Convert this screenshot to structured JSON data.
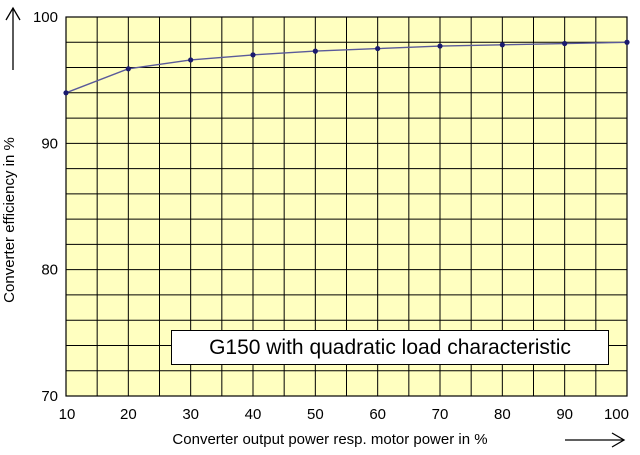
{
  "chart_data": {
    "type": "line",
    "title": "",
    "xlabel": "Converter output power resp. motor power in %",
    "ylabel": "Converter efficiency in %",
    "xlim": [
      10,
      100
    ],
    "ylim": [
      70,
      100
    ],
    "x_ticks": [
      "10",
      "20",
      "30",
      "40",
      "50",
      "60",
      "70",
      "80",
      "90",
      "100"
    ],
    "y_ticks": [
      "70",
      "80",
      "90",
      "100"
    ],
    "grid": true,
    "legend": "none",
    "annotation": "G150 with quadratic load characteristic",
    "series": [
      {
        "x": [
          10,
          20,
          30,
          40,
          50,
          60,
          70,
          80,
          90,
          100
        ],
        "values": [
          94.0,
          95.9,
          96.6,
          97.0,
          97.3,
          97.5,
          97.7,
          97.8,
          97.9,
          98.0
        ]
      }
    ],
    "colors": {
      "plot_background": "#ffffc0",
      "grid": "#000000",
      "line": "#5a5a9a",
      "marker": "#1a1a6e"
    }
  }
}
